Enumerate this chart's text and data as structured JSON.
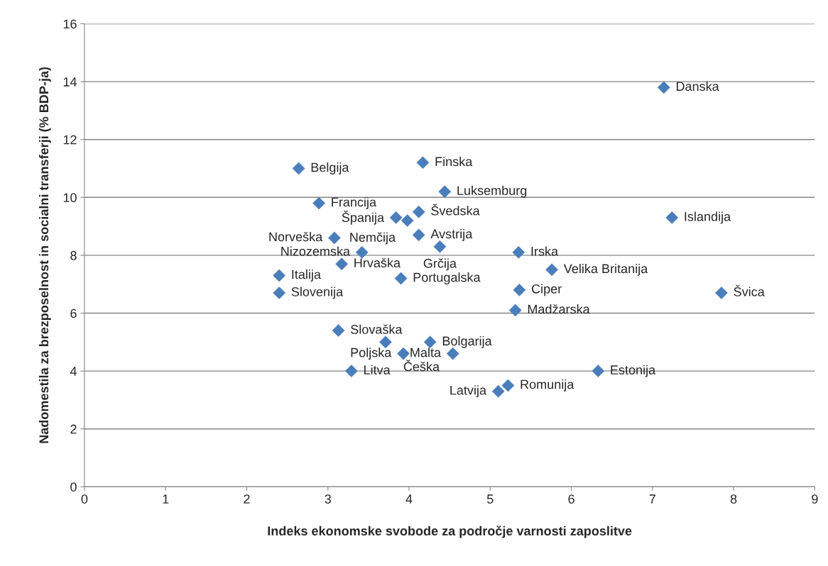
{
  "chart_data": {
    "type": "scatter",
    "xlabel": "Indeks ekonomske svobode za področje varnosti zaposlitve",
    "ylabel": "Nadomestila za brezposelnost in socialni transferji (% BDP-ja)",
    "x": [
      7.14,
      7.24,
      7.85,
      2.64,
      4.17,
      4.44,
      2.89,
      3.84,
      4.12,
      3.98,
      4.12,
      3.08,
      3.42,
      4.38,
      5.35,
      5.76,
      3.17,
      2.4,
      2.4,
      3.9,
      5.36,
      5.31,
      3.13,
      3.71,
      4.26,
      3.93,
      4.54,
      3.29,
      6.33,
      5.22,
      5.1
    ],
    "series": [
      {
        "color": "#4a7ebb",
        "values": [
          13.8,
          9.3,
          6.7,
          11.0,
          11.2,
          10.2,
          9.8,
          9.3,
          9.5,
          9.2,
          8.7,
          8.6,
          8.1,
          8.3,
          8.1,
          7.5,
          7.7,
          7.3,
          6.7,
          7.2,
          6.8,
          6.1,
          5.4,
          5.0,
          5.0,
          4.6,
          4.6,
          4.0,
          4.0,
          3.5,
          3.3
        ]
      }
    ],
    "annotations": [
      {
        "text": "Danska",
        "x": 7.14,
        "y": 13.8
      },
      {
        "text": "Islandija",
        "x": 7.24,
        "y": 9.3
      },
      {
        "text": "Švica",
        "x": 7.85,
        "y": 6.7
      },
      {
        "text": "Belgija",
        "x": 2.64,
        "y": 11.0
      },
      {
        "text": "Finska",
        "x": 4.17,
        "y": 11.2
      },
      {
        "text": "Luksemburg",
        "x": 4.44,
        "y": 10.2
      },
      {
        "text": "Francija",
        "x": 2.89,
        "y": 9.8
      },
      {
        "text": "Španija",
        "x": 3.84,
        "y": 9.3
      },
      {
        "text": "Švedska",
        "x": 4.12,
        "y": 9.5
      },
      {
        "text": "Nemčija",
        "x": 3.98,
        "y": 9.2
      },
      {
        "text": "Avstrija",
        "x": 4.12,
        "y": 8.7
      },
      {
        "text": "Norveška",
        "x": 3.08,
        "y": 8.6
      },
      {
        "text": "Nizozemska",
        "x": 3.42,
        "y": 8.1
      },
      {
        "text": "Grčija",
        "x": 4.38,
        "y": 8.3
      },
      {
        "text": "Irska",
        "x": 5.35,
        "y": 8.1
      },
      {
        "text": "Velika Britanija",
        "x": 5.76,
        "y": 7.5
      },
      {
        "text": "Hrvaška",
        "x": 3.17,
        "y": 7.7
      },
      {
        "text": "Italija",
        "x": 2.4,
        "y": 7.3
      },
      {
        "text": "Slovenija",
        "x": 2.4,
        "y": 6.7
      },
      {
        "text": "Portugalska",
        "x": 3.9,
        "y": 7.2
      },
      {
        "text": "Ciper",
        "x": 5.36,
        "y": 6.8
      },
      {
        "text": "Madžarska",
        "x": 5.31,
        "y": 6.1
      },
      {
        "text": "Slovaška",
        "x": 3.13,
        "y": 5.4
      },
      {
        "text": "Češka",
        "x": 3.71,
        "y": 5.0
      },
      {
        "text": "Bolgarija",
        "x": 4.26,
        "y": 5.0
      },
      {
        "text": "Poljska",
        "x": 3.93,
        "y": 4.6
      },
      {
        "text": "Malta",
        "x": 4.54,
        "y": 4.6
      },
      {
        "text": "Litva",
        "x": 3.29,
        "y": 4.0
      },
      {
        "text": "Estonija",
        "x": 6.33,
        "y": 4.0
      },
      {
        "text": "Romunija",
        "x": 5.22,
        "y": 3.5
      },
      {
        "text": "Latvija",
        "x": 5.1,
        "y": 3.3
      }
    ],
    "xlim": [
      0,
      9
    ],
    "xticks": [
      0,
      1,
      2,
      3,
      4,
      5,
      6,
      7,
      8,
      9
    ],
    "ylim": [
      0,
      16
    ],
    "yticks": [
      0,
      2,
      4,
      6,
      8,
      10,
      12,
      14,
      16
    ],
    "grid": "y",
    "marker": "diamond",
    "legend": false
  }
}
